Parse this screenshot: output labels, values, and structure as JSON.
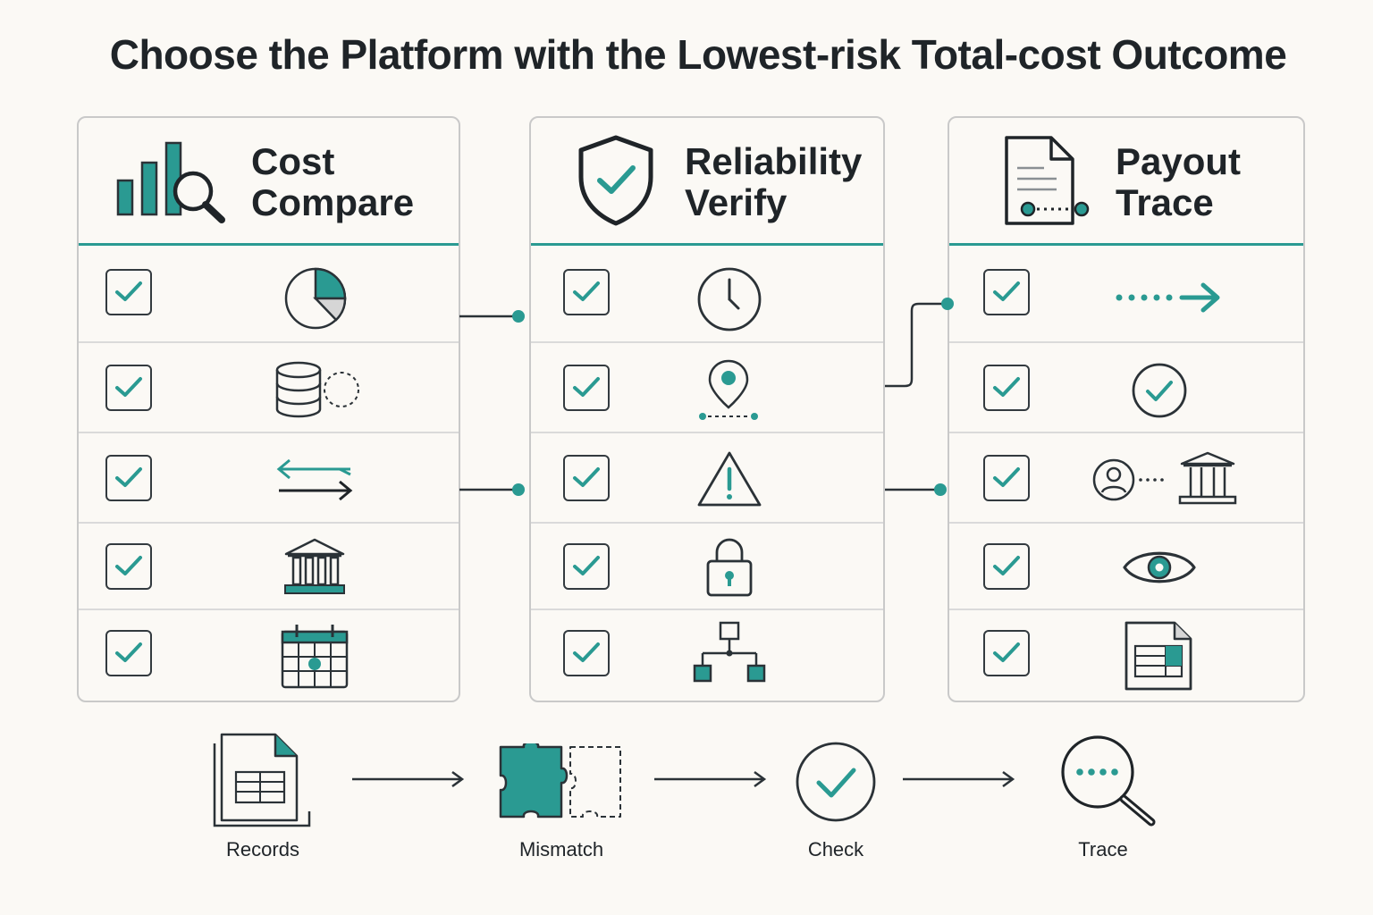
{
  "title": "Choose the Platform with the Lowest-risk Total-cost Outcome",
  "colors": {
    "accent": "#2a9a92",
    "ink": "#2b3237",
    "border": "#c9c9c9",
    "background": "#fbf9f5"
  },
  "panels": [
    {
      "title_line1": "Cost",
      "title_line2": "Compare",
      "header_icon": "bar-chart-magnifier-icon",
      "rows": [
        {
          "checked": true,
          "icon": "pie-chart-icon"
        },
        {
          "checked": true,
          "icon": "database-icon"
        },
        {
          "checked": true,
          "icon": "exchange-arrows-icon"
        },
        {
          "checked": true,
          "icon": "bank-icon"
        },
        {
          "checked": true,
          "icon": "calendar-icon"
        }
      ]
    },
    {
      "title_line1": "Reliability",
      "title_line2": "Verify",
      "header_icon": "shield-check-icon",
      "rows": [
        {
          "checked": true,
          "icon": "clock-icon"
        },
        {
          "checked": true,
          "icon": "location-pin-icon"
        },
        {
          "checked": true,
          "icon": "warning-icon"
        },
        {
          "checked": true,
          "icon": "lock-icon"
        },
        {
          "checked": true,
          "icon": "hierarchy-icon"
        }
      ]
    },
    {
      "title_line1": "Payout",
      "title_line2": "Trace",
      "header_icon": "document-trace-icon",
      "rows": [
        {
          "checked": true,
          "icon": "dotted-arrow-icon"
        },
        {
          "checked": true,
          "icon": "check-circle-icon"
        },
        {
          "checked": true,
          "icon": "user-to-bank-icon"
        },
        {
          "checked": true,
          "icon": "eye-icon"
        },
        {
          "checked": true,
          "icon": "spreadsheet-icon"
        }
      ]
    }
  ],
  "flow": [
    {
      "label": "Records",
      "icon": "records-icon"
    },
    {
      "label": "Mismatch",
      "icon": "puzzle-icon"
    },
    {
      "label": "Check",
      "icon": "check-circle-icon"
    },
    {
      "label": "Trace",
      "icon": "magnifier-dots-icon"
    }
  ]
}
